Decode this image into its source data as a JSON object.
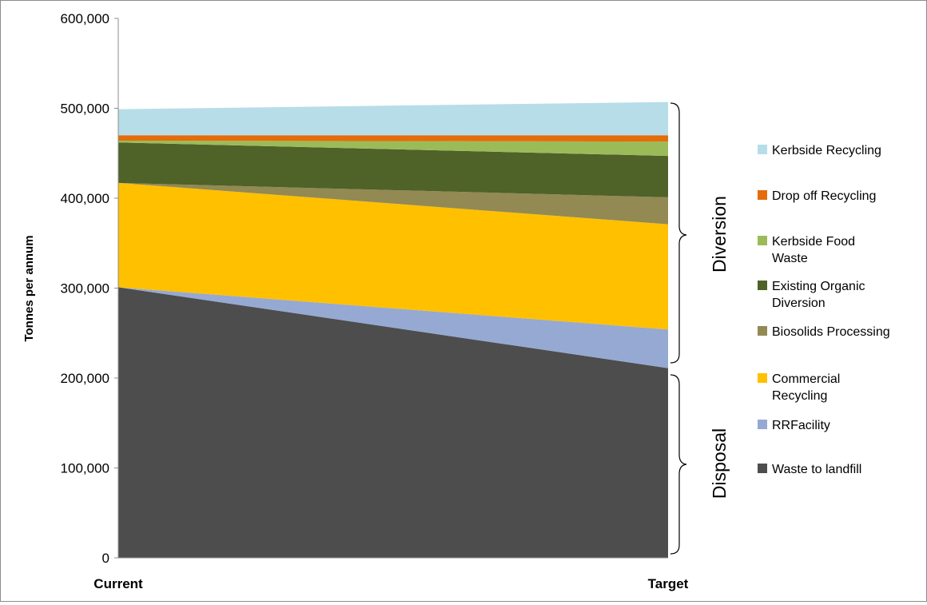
{
  "chart_data": {
    "type": "area",
    "stacked": true,
    "categories": [
      "Current",
      "Target"
    ],
    "ylabel": "Tonnes per annum",
    "xlabel": "",
    "ylim": [
      0,
      600000
    ],
    "yticks": [
      0,
      100000,
      200000,
      300000,
      400000,
      500000,
      600000
    ],
    "ytick_labels": [
      "0",
      "100,000",
      "200,000",
      "300,000",
      "400,000",
      "500,000",
      "600,000"
    ],
    "grid": false,
    "legend_position": "right",
    "series": [
      {
        "name": "Waste to landfill",
        "color": "#4d4d4d",
        "values": [
          301000,
          211000
        ]
      },
      {
        "name": "RRFacility",
        "color": "#95a9d2",
        "values": [
          0,
          43000
        ]
      },
      {
        "name": "Commercial Recycling",
        "color": "#ffc000",
        "values": [
          116000,
          117000
        ]
      },
      {
        "name": "Biosolids Processing",
        "color": "#938953",
        "values": [
          0,
          30000
        ]
      },
      {
        "name": "Existing Organic Diversion",
        "color": "#4f6228",
        "values": [
          45000,
          46000
        ]
      },
      {
        "name": "Kerbside Food Waste",
        "color": "#9bbb59",
        "values": [
          2000,
          16000
        ]
      },
      {
        "name": "Drop off Recycling",
        "color": "#e46c0a",
        "values": [
          6000,
          7000
        ]
      },
      {
        "name": "Kerbside Recycling",
        "color": "#b7dde8",
        "values": [
          29000,
          37000
        ]
      }
    ],
    "annotations": {
      "diversion_label": "Diversion",
      "disposal_label": "Disposal"
    }
  },
  "legend_order": [
    {
      "lines": [
        "Kerbside Recycling"
      ],
      "color": "#b7dde8"
    },
    {
      "lines": [
        "Drop off Recycling"
      ],
      "color": "#e46c0a"
    },
    {
      "lines": [
        "Kerbside Food",
        "Waste"
      ],
      "color": "#9bbb59"
    },
    {
      "lines": [
        "Existing Organic",
        "Diversion"
      ],
      "color": "#4f6228"
    },
    {
      "lines": [
        "Biosolids Processing"
      ],
      "color": "#938953"
    },
    {
      "lines": [
        "Commercial",
        "Recycling"
      ],
      "color": "#ffc000"
    },
    {
      "lines": [
        "RRFacility"
      ],
      "color": "#95a9d2"
    },
    {
      "lines": [
        "Waste to landfill"
      ],
      "color": "#4d4d4d"
    }
  ]
}
